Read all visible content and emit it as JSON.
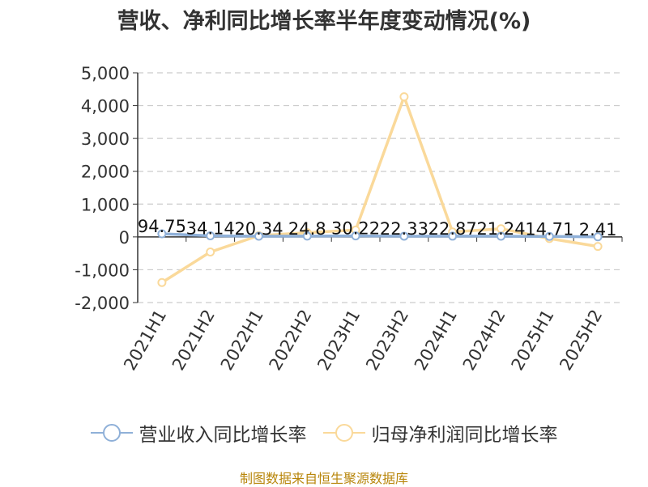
{
  "title": "营收、净利同比增长率半年度变动情况(%)",
  "source": "制图数据来自恒生聚源数据库",
  "colors": {
    "revenue": "#8fb0d8",
    "profit": "#fad99a",
    "axis": "#333333",
    "grid": "#cccccc",
    "source": "#b8860b"
  },
  "chart_data": {
    "type": "line",
    "title": "营收、净利同比增长率半年度变动情况(%)",
    "categories": [
      "2021H1",
      "2021H2",
      "2022H1",
      "2022H2",
      "2023H1",
      "2023H2",
      "2024H1",
      "2024H2",
      "2025H1",
      "2025H2"
    ],
    "y_ticks": [
      "5,000",
      "4,000",
      "3,000",
      "2,000",
      "1,000",
      "0",
      "-1,000",
      "-2,000"
    ],
    "ylim": [
      -2000,
      5000
    ],
    "grid": true,
    "legend_position": "bottom",
    "series": [
      {
        "name": "营业收入同比增长率",
        "values": [
          94.75,
          34.14,
          20.34,
          24.8,
          30.22,
          22.33,
          22.87,
          21.24,
          14.71,
          2.41
        ],
        "labels": [
          "94.75",
          "34.14",
          "20.34",
          "24.8",
          "30.22",
          "22.33",
          "22.87",
          "21.24",
          "14.71",
          "2.41"
        ],
        "color": "#8fb0d8"
      },
      {
        "name": "归母净利润同比增长率",
        "values": [
          -1390,
          -460,
          40,
          130,
          210,
          4270,
          150,
          250,
          -50,
          -290
        ],
        "color": "#fad99a"
      }
    ]
  }
}
